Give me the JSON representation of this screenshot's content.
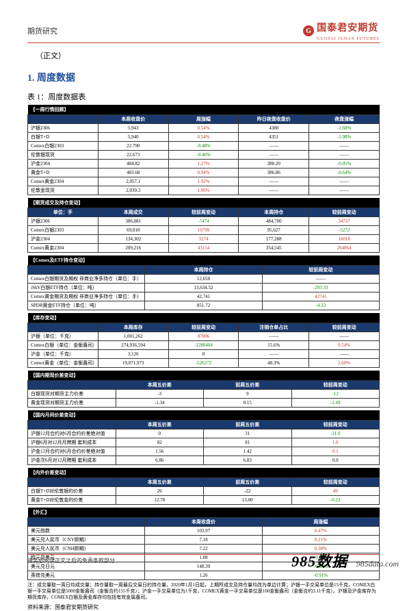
{
  "header": {
    "left": "期货研究",
    "brand": "国泰君安期货",
    "brand_en": "GUOTAI JUNAN FUTURES",
    "logo_glyph": "G"
  },
  "zhengwen": "（正文）",
  "section_title": "1.  周度数据",
  "table_caption": "表 1：周度数据表",
  "colors": {
    "navy": "#1a3a6e",
    "red": "#c0392b",
    "green": "#0a8a0a"
  },
  "g1": {
    "title": "【一周行情回顾】",
    "heads": [
      "",
      "本周收盘价",
      "周涨幅",
      "昨日夜盘收盘价",
      "夜盘涨幅"
    ],
    "rows": [
      {
        "n": "沪银2306",
        "a": "5,943",
        "b": "0.54%",
        "bcls": "red",
        "c": "4380",
        "d": "-1.68%",
        "dcls": "green"
      },
      {
        "n": "白银T+D",
        "a": "5,940",
        "b": "0.54%",
        "bcls": "red",
        "c": "4351",
        "d": "-1.98%",
        "dcls": "green"
      },
      {
        "n": "Comex白银2303",
        "a": "22.790",
        "b": "-0.48%",
        "bcls": "green",
        "c": "——",
        "d": "——"
      },
      {
        "n": "伦敦银现货",
        "a": "22.673",
        "b": "-0.46%",
        "bcls": "green",
        "c": "——",
        "d": "——"
      },
      {
        "n": "沪金2304",
        "a": "484.82",
        "b": "1.27%",
        "bcls": "red",
        "c": "388.20",
        "d": "-0.05%",
        "dcls": "green"
      },
      {
        "n": "黄金T+D",
        "a": "483.68",
        "b": "0.94%",
        "bcls": "red",
        "c": "386.86",
        "d": "-0.64%",
        "dcls": "green"
      },
      {
        "n": "Comex黄金2304",
        "a": "2,057.1",
        "b": "1.92%",
        "bcls": "red",
        "c": "——",
        "d": "——"
      },
      {
        "n": "伦敦金现货",
        "a": "2,039.3",
        "b": "1.06%",
        "bcls": "red",
        "c": "——",
        "d": "——"
      }
    ]
  },
  "g2": {
    "title": "【期货成交及持仓变动】",
    "heads": [
      "单位：手",
      "本周成交",
      "较前周变动",
      "本周持仓",
      "较前周变动"
    ],
    "rows": [
      {
        "n": "沪银2306",
        "a": "386,081",
        "b": "-7474",
        "bcls": "green",
        "c": "484,700",
        "d": "34737",
        "dcls": "red"
      },
      {
        "n": "Comex白银2303",
        "a": "69,810",
        "b": "10799",
        "bcls": "red",
        "c": "95,627",
        "d": "-5272",
        "dcls": "green"
      },
      {
        "n": "沪金2304",
        "a": "134,302",
        "b": "3274",
        "bcls": "red",
        "c": "177,288",
        "d": "16018",
        "dcls": "red"
      },
      {
        "n": "Comex黄金2304",
        "a": "209,216",
        "b": "43154",
        "bcls": "red",
        "c": "354,545",
        "d": "264864",
        "dcls": "red"
      }
    ]
  },
  "g3": {
    "title": "【Comex及ETF持仓变动】",
    "heads": [
      "",
      "本周持仓",
      "较前周变动"
    ],
    "rows": [
      {
        "n": "Comex白银期货及期权\n非商业净多持仓（单位：手）",
        "a": "12,658",
        "b": "——"
      },
      {
        "n": "iShV白银ETF持仓（单位：吨）",
        "a": "13,634.52",
        "b": "-293.33",
        "bcls": "green"
      },
      {
        "n": "Comex黄金期货及期权\n非商业净多持仓（单位：手）",
        "a": "42,741",
        "b": "42741",
        "bcls": "red"
      },
      {
        "n": "SPDR黄金ETF持仓（单位：吨）",
        "a": "851.72",
        "b": "-4.33",
        "bcls": "green"
      }
    ]
  },
  "g4": {
    "title": "【库存变动】",
    "heads": [
      "",
      "本周库存",
      "较前周变动",
      "注销仓单占比",
      "较前周变动"
    ],
    "rows": [
      {
        "n": "沪银（单位：千克）",
        "a": "1,001,262",
        "b": "87086",
        "bcls": "red",
        "c": "——",
        "d": "——"
      },
      {
        "n": "Comex白银（单位：金衡盎司）",
        "a": "274,936,594",
        "b": "-1280404",
        "bcls": "green",
        "c": "15.6%",
        "d": "0.54%",
        "dcls": "red"
      },
      {
        "n": "沪金（单位：千克）",
        "a": "3,126",
        "b": "0",
        "c": "——",
        "d": "——"
      },
      {
        "n": "Comex黄金（单位：金衡盎司）",
        "a": "19,071,973",
        "b": "-526272",
        "bcls": "green",
        "c": "48.3%",
        "d": "2.60%",
        "dcls": "red"
      }
    ]
  },
  "g5": {
    "title": "【国内期现价差变动】",
    "heads": [
      "",
      "本周五价差",
      "前周五价差",
      "较前周变动"
    ],
    "rows": [
      {
        "n": "白银现货对期货主力价差",
        "a": "-3",
        "b": "9",
        "c": "-12",
        "ccls": "green"
      },
      {
        "n": "黄金现货对期货主力价差",
        "a": "-1.34",
        "b": "0.15",
        "c": "-1.49",
        "ccls": "green"
      }
    ]
  },
  "g6": {
    "title": "【国内月间价差变动】",
    "heads": [
      "",
      "本周五价差",
      "前周五价差",
      "较前周变动"
    ],
    "rows": [
      {
        "n": "沪银12月合约对6月合约价差绝对值",
        "a": "0",
        "b": "31",
        "c": "-31.0",
        "ccls": "green"
      },
      {
        "n": "沪银6月对12月月跨期\n套利成本",
        "a": "82",
        "b": "81",
        "c": "1.0",
        "ccls": "red"
      },
      {
        "n": "沪金12月合约对6月合约价差绝对值",
        "a": "1.56",
        "b": "1.42",
        "c": "0.1",
        "ccls": "red"
      },
      {
        "n": "沪金次6月对12月跨期\n套利成本",
        "a": "6.86",
        "b": "6.83",
        "c": "0.0"
      }
    ]
  },
  "g7": {
    "title": "【内外价差变动】",
    "heads": [
      "",
      "本周五价差",
      "前周五价差",
      "较前周变动"
    ],
    "rows": [
      {
        "n": "白银T+D对伦敦银的价差",
        "a": "26",
        "b": "-22",
        "c": "49",
        "ccls": "red"
      },
      {
        "n": "黄金T+D对伦敦金的价差",
        "a": "12.78",
        "b": "13.00",
        "c": "-0.22",
        "ccls": "green"
      }
    ]
  },
  "g8": {
    "title": "【外汇】",
    "heads": [
      "",
      "本周收盘价",
      "周涨幅"
    ],
    "rows": [
      {
        "n": "美元指数",
        "a": "103.97",
        "b": "0.47%",
        "bcls": "red"
      },
      {
        "n": "美元兑人民币（CNY即期）",
        "a": "7.18",
        "b": "0.21%",
        "bcls": "red"
      },
      {
        "n": "美元兑人民币（CNH即期）",
        "a": "7.22",
        "b": "0.38%",
        "bcls": "red"
      },
      {
        "n": "欧元兑美元",
        "a": "1.08",
        "b": "-0.61%",
        "bcls": "green"
      },
      {
        "n": "美元兑日元",
        "a": "148.39",
        "b": "-0.18%",
        "bcls": "green"
      },
      {
        "n": "英镑兑美元",
        "a": "1.26",
        "b": "-0.91%",
        "bcls": "green"
      }
    ]
  },
  "note": "注：成交量取一周日均成交量；持仓量取一周最后交易日的持仓量。2020年1月1日起，上期所成交及持仓量均改为单边计算；沪银一手交易单位是15千克，COMEX白银一手交易单位是5000金衡盎司（金衡合约155千克）；沪金一手交易单位为1千克，COMEX黄金一手交易单位是100金衡盎司（金衡合约3.11千克）。沪银及沪金库存为期货库存，COMEX白银及黄金库存均包括有效金属盎司。",
  "source": "资料来源：国泰君安期货研究",
  "footer": {
    "left": "请务必阅读正文之后的免责条款部分",
    "wm": "985数据",
    "url": "985data.com"
  }
}
